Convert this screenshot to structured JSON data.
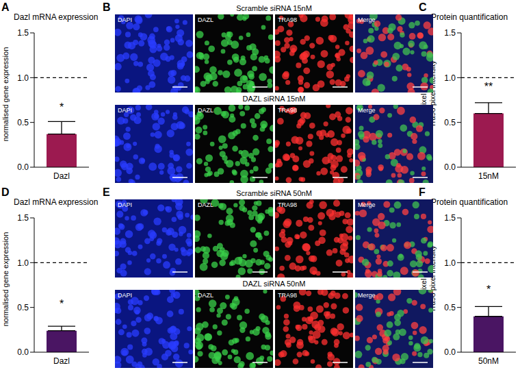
{
  "chart_data": [
    {
      "panel": "A",
      "type": "bar",
      "title": "Dazl mRNA expression",
      "y_label": [
        "normalised gene expression"
      ],
      "categories": [
        "Dazl"
      ],
      "values": [
        0.37
      ],
      "errors": [
        0.14
      ],
      "significance": [
        "*"
      ],
      "reference_line": 1,
      "color": "#9c1a50",
      "ylim": [
        0,
        1.5
      ],
      "yticks": [
        {
          "value": 0,
          "label": "0.0"
        },
        {
          "value": 0.5,
          "label": "0.5"
        },
        {
          "value": 1,
          "label": "1.0"
        },
        {
          "value": 1.5,
          "label": "1.5"
        }
      ]
    },
    {
      "panel": "C",
      "type": "bar",
      "title": "Protein quantification",
      "y_label": [
        "Dazl pixel intensity/",
        "Tra98 pixel intensity"
      ],
      "categories": [
        "15nM"
      ],
      "values": [
        0.6
      ],
      "errors": [
        0.12
      ],
      "significance": [
        "**"
      ],
      "reference_line": 1,
      "color": "#9c1a50",
      "ylim": [
        0,
        1.5
      ],
      "yticks": [
        {
          "value": 0,
          "label": "0.0"
        },
        {
          "value": 0.5,
          "label": "0.5"
        },
        {
          "value": 1,
          "label": "1.0"
        },
        {
          "value": 1.5,
          "label": "1.5"
        }
      ]
    },
    {
      "panel": "D",
      "type": "bar",
      "title": "Dazl mRNA expression",
      "y_label": [
        "normalised gene expression"
      ],
      "categories": [
        "Dazl"
      ],
      "values": [
        0.24
      ],
      "errors": [
        0.05
      ],
      "significance": [
        "*"
      ],
      "reference_line": 1,
      "color": "#4a1563",
      "ylim": [
        0,
        1.5
      ],
      "yticks": [
        {
          "value": 0,
          "label": "0.0"
        },
        {
          "value": 0.5,
          "label": "0.5"
        },
        {
          "value": 1,
          "label": "1.0"
        },
        {
          "value": 1.5,
          "label": "1.5"
        }
      ]
    },
    {
      "panel": "F",
      "type": "bar",
      "title": "Protein quantification",
      "y_label": [
        "Dazl pixel intensity/",
        "Tra98 pixel intensity"
      ],
      "categories": [
        "50nM"
      ],
      "values": [
        0.4
      ],
      "errors": [
        0.11
      ],
      "significance": [
        "*"
      ],
      "reference_line": 1,
      "color": "#4a1563",
      "ylim": [
        0,
        1.5
      ],
      "yticks": [
        {
          "value": 0,
          "label": "0.0"
        },
        {
          "value": 0.5,
          "label": "0.5"
        },
        {
          "value": 1,
          "label": "1.0"
        },
        {
          "value": 1.5,
          "label": "1.5"
        }
      ]
    }
  ],
  "images": [
    {
      "panel": "B",
      "rows": [
        {
          "title": "Scramble siRNA 15nM",
          "channels": [
            "DAPI",
            "DAZL",
            "TRA98",
            "Merge"
          ]
        },
        {
          "title": "DAZL siRNA 15nM",
          "channels": [
            "DAPI",
            "DAZL",
            "TRA98",
            "Merge"
          ]
        }
      ]
    },
    {
      "panel": "E",
      "rows": [
        {
          "title": "Scramble siRNA 50nM",
          "channels": [
            "DAPI",
            "DAZL",
            "TRA98",
            "Merge"
          ]
        },
        {
          "title": "DAZL siRNA 50nM",
          "channels": [
            "DAPI",
            "DAZL",
            "TRA98",
            "Merge"
          ]
        }
      ]
    }
  ]
}
